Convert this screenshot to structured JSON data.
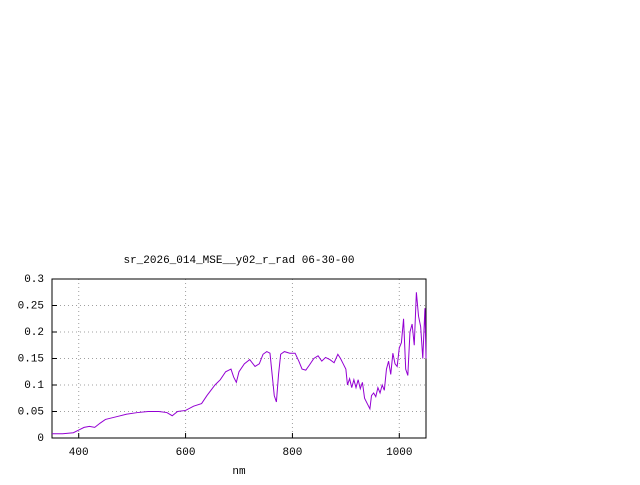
{
  "chart_data": {
    "type": "line",
    "title": "sr_2026_014_MSE__y02_r_rad 06-30-00",
    "x_label": "nm",
    "xlim": [
      350,
      1050
    ],
    "ylim": [
      0,
      0.3
    ],
    "xticks": [
      400,
      600,
      800,
      1000
    ],
    "yticks": [
      0,
      0.05,
      0.1,
      0.15,
      0.2,
      0.25,
      0.3
    ],
    "grid": true,
    "x": [
      350,
      370,
      390,
      400,
      410,
      420,
      430,
      440,
      450,
      470,
      490,
      510,
      530,
      550,
      565,
      575,
      585,
      600,
      615,
      630,
      640,
      655,
      665,
      675,
      685,
      690,
      695,
      700,
      710,
      720,
      730,
      738,
      745,
      752,
      758,
      762,
      766,
      770,
      774,
      778,
      785,
      795,
      805,
      812,
      818,
      825,
      832,
      840,
      848,
      855,
      862,
      870,
      878,
      885,
      890,
      895,
      900,
      903,
      907,
      911,
      915,
      919,
      923,
      927,
      931,
      935,
      940,
      945,
      948,
      952,
      956,
      960,
      964,
      968,
      972,
      976,
      980,
      984,
      988,
      992,
      996,
      1000,
      1004,
      1008,
      1012,
      1016,
      1020,
      1024,
      1028,
      1032,
      1036,
      1040,
      1044,
      1048,
      1050
    ],
    "series": [
      {
        "color": "#9400d3",
        "values": [
          0.008,
          0.008,
          0.01,
          0.015,
          0.02,
          0.022,
          0.02,
          0.028,
          0.035,
          0.04,
          0.045,
          0.048,
          0.05,
          0.05,
          0.048,
          0.042,
          0.05,
          0.052,
          0.06,
          0.065,
          0.08,
          0.1,
          0.11,
          0.125,
          0.13,
          0.115,
          0.105,
          0.125,
          0.14,
          0.148,
          0.135,
          0.14,
          0.158,
          0.163,
          0.16,
          0.12,
          0.08,
          0.068,
          0.12,
          0.158,
          0.163,
          0.16,
          0.16,
          0.145,
          0.13,
          0.128,
          0.138,
          0.15,
          0.155,
          0.145,
          0.152,
          0.148,
          0.142,
          0.158,
          0.15,
          0.14,
          0.13,
          0.1,
          0.112,
          0.095,
          0.11,
          0.095,
          0.11,
          0.093,
          0.105,
          0.075,
          0.065,
          0.055,
          0.08,
          0.085,
          0.078,
          0.095,
          0.085,
          0.1,
          0.09,
          0.13,
          0.145,
          0.12,
          0.16,
          0.14,
          0.135,
          0.17,
          0.18,
          0.225,
          0.13,
          0.118,
          0.2,
          0.215,
          0.175,
          0.275,
          0.23,
          0.21,
          0.15,
          0.245,
          0.15
        ]
      }
    ]
  }
}
